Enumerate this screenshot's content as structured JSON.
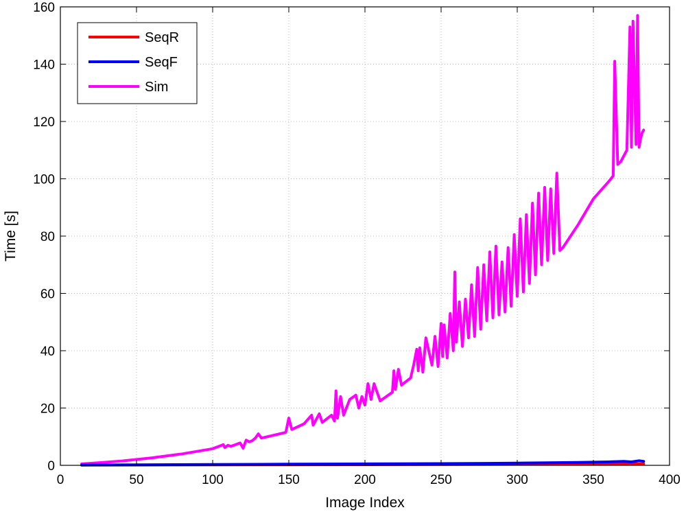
{
  "chart_data": {
    "type": "line",
    "xlabel": "Image Index",
    "ylabel": "Time [s]",
    "xlim": [
      0,
      400
    ],
    "ylim": [
      0,
      160
    ],
    "xticks": [
      0,
      50,
      100,
      150,
      200,
      250,
      300,
      350,
      400
    ],
    "yticks": [
      0,
      20,
      40,
      60,
      80,
      100,
      120,
      140,
      160
    ],
    "grid": true,
    "legend_position": "top-left",
    "series": [
      {
        "name": "SeqR",
        "color": "#ff0000",
        "x": [
          14,
          50,
          100,
          150,
          200,
          250,
          300,
          330,
          350,
          370,
          383
        ],
        "y": [
          0.05,
          0.1,
          0.15,
          0.2,
          0.25,
          0.3,
          0.35,
          0.4,
          0.45,
          0.5,
          0.5
        ]
      },
      {
        "name": "SeqF",
        "color": "#0000ff",
        "x": [
          14,
          50,
          100,
          150,
          200,
          250,
          280,
          300,
          320,
          340,
          350,
          360,
          370,
          375,
          380,
          383
        ],
        "y": [
          0.1,
          0.2,
          0.3,
          0.4,
          0.5,
          0.6,
          0.7,
          0.8,
          0.9,
          1.0,
          1.1,
          1.2,
          1.4,
          1.2,
          1.6,
          1.4
        ]
      },
      {
        "name": "Sim",
        "color": "#ff00ff",
        "x": [
          14,
          25,
          40,
          60,
          80,
          100,
          107,
          108,
          110,
          112,
          118,
          120,
          122,
          124,
          126,
          128,
          130,
          132,
          140,
          148,
          150,
          152,
          160,
          165,
          166,
          168,
          170,
          172,
          178,
          180,
          181,
          182,
          184,
          186,
          190,
          194,
          196,
          198,
          200,
          202,
          204,
          206,
          210,
          218,
          219,
          220,
          222,
          224,
          230,
          232,
          234,
          235,
          236,
          238,
          240,
          244,
          246,
          248,
          250,
          251,
          252,
          254,
          256,
          258,
          259,
          260,
          262,
          264,
          266,
          268,
          270,
          272,
          274,
          276,
          278,
          280,
          282,
          284,
          286,
          288,
          290,
          292,
          294,
          296,
          298,
          300,
          302,
          304,
          306,
          308,
          310,
          312,
          314,
          316,
          318,
          320,
          322,
          324,
          326,
          328,
          330,
          340,
          350,
          360,
          363,
          364,
          366,
          368,
          370,
          372,
          374,
          375,
          376,
          378,
          379,
          380,
          381,
          382,
          383
        ],
        "y": [
          0.5,
          0.9,
          1.5,
          2.6,
          4.0,
          5.8,
          7.2,
          6.2,
          7.0,
          6.6,
          7.8,
          6.0,
          8.8,
          8.2,
          8.6,
          9.5,
          11.0,
          9.5,
          10.5,
          11.5,
          16.5,
          12.5,
          14.5,
          17.5,
          14.0,
          16.0,
          18.0,
          15.0,
          17.5,
          15.5,
          26.0,
          16.5,
          24.0,
          17.5,
          23.0,
          24.5,
          20.0,
          24.0,
          21.0,
          28.5,
          23.0,
          28.5,
          22.5,
          25.5,
          33.0,
          26.5,
          33.5,
          28.0,
          30.5,
          35.0,
          40.5,
          33.0,
          41.0,
          32.5,
          44.5,
          35.0,
          45.0,
          34.5,
          49.5,
          38.0,
          49.0,
          37.5,
          53.0,
          40.0,
          67.5,
          43.0,
          57.0,
          41.5,
          58.0,
          44.5,
          63.0,
          45.0,
          69.0,
          47.5,
          70.0,
          50.5,
          74.5,
          51.5,
          76.5,
          52.5,
          71.0,
          53.5,
          76.0,
          55.5,
          80.5,
          59.0,
          86.0,
          60.5,
          87.5,
          63.5,
          91.5,
          66.5,
          95.0,
          70.0,
          97.0,
          71.5,
          96.5,
          74.0,
          102.0,
          75.0,
          76.0,
          84.0,
          93.0,
          99.0,
          101.0,
          141.0,
          105.0,
          106.0,
          108.0,
          110.0,
          153.0,
          111.0,
          155.0,
          112.0,
          157.0,
          111.0,
          114.0,
          116.0,
          117.0
        ]
      }
    ]
  }
}
